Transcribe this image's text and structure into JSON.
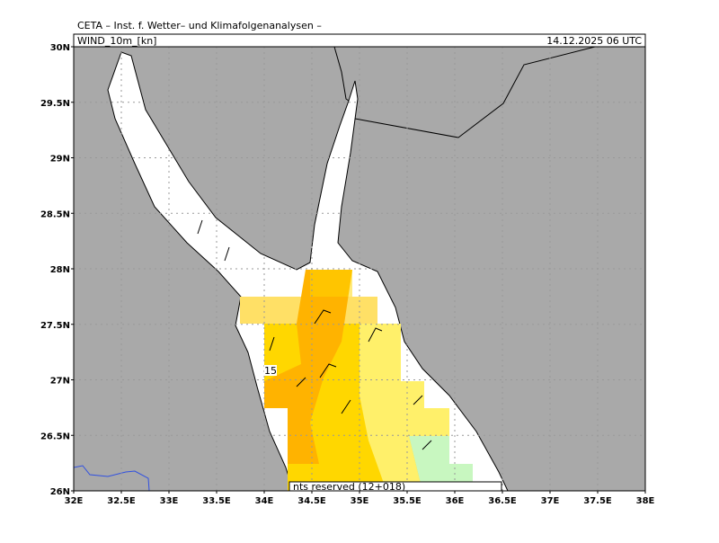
{
  "header": {
    "title": "CETA – Inst. f. Wetter– und Klimafolgenanalysen –",
    "variable": "WIND_10m_[kn]",
    "datetime": "14.12.2025 06 UTC"
  },
  "axes": {
    "lat_labels": [
      "30N",
      "29.5N",
      "29N",
      "28.5N",
      "28N",
      "27.5N",
      "27N",
      "26.5N",
      "26N"
    ],
    "lon_labels": [
      "32E",
      "32.5E",
      "33E",
      "33.5E",
      "34E",
      "34.5E",
      "35E",
      "35.5E",
      "36E",
      "36.5E",
      "37E",
      "37.5E",
      "38E"
    ]
  },
  "contour_label": "15",
  "footer": "nts reserved (12+018)"
}
